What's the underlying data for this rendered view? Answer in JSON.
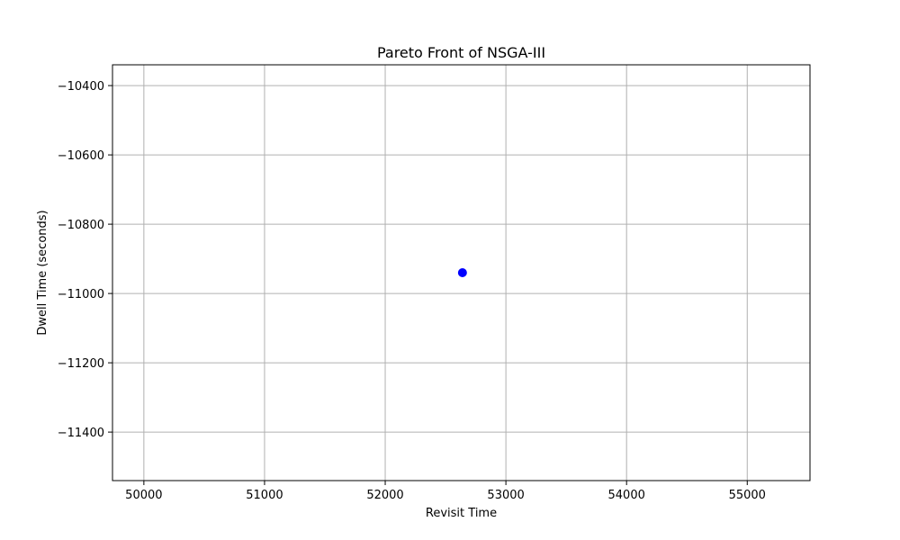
{
  "chart_data": {
    "type": "scatter",
    "title": "Pareto Front of NSGA-III",
    "xlabel": "Revisit Time",
    "ylabel": "Dwell Time (seconds)",
    "xlim": [
      49740,
      55520
    ],
    "ylim": [
      -11540,
      -10340
    ],
    "xticks": [
      50000,
      51000,
      52000,
      53000,
      54000,
      55000
    ],
    "yticks": [
      -10400,
      -10600,
      -10800,
      -11000,
      -11200,
      -11400
    ],
    "ytick_labels": [
      "−10400",
      "−10600",
      "−10800",
      "−11000",
      "−11200",
      "−11400"
    ],
    "grid": true,
    "series": [
      {
        "color": "#0000ff",
        "points": [
          {
            "x": 52640,
            "y": -10940
          }
        ]
      }
    ]
  }
}
